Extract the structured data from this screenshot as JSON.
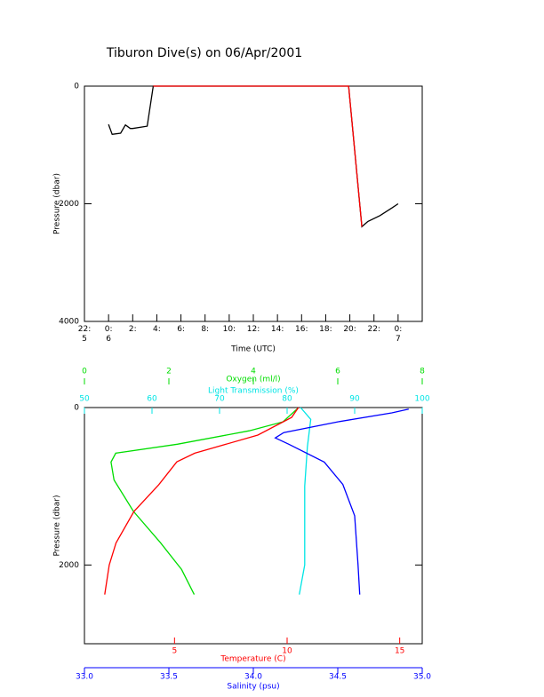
{
  "chart_data": [
    {
      "type": "line",
      "title": "Tiburon Dive(s) on 06/Apr/2001",
      "xlabel": "Time (UTC)",
      "ylabel": "Pressure (dbar)",
      "xlim": [
        -2,
        26
      ],
      "xticks": [
        {
          "value": -2,
          "label": "22:\n5"
        },
        {
          "value": 0,
          "label": "0:\n6"
        },
        {
          "value": 2,
          "label": "2:"
        },
        {
          "value": 4,
          "label": "4:"
        },
        {
          "value": 6,
          "label": "6:"
        },
        {
          "value": 8,
          "label": "8:"
        },
        {
          "value": 10,
          "label": "10:"
        },
        {
          "value": 12,
          "label": "12:"
        },
        {
          "value": 14,
          "label": "14:"
        },
        {
          "value": 16,
          "label": "16:"
        },
        {
          "value": 18,
          "label": "18:"
        },
        {
          "value": 20,
          "label": "20:"
        },
        {
          "value": 22,
          "label": "22:"
        },
        {
          "value": 24,
          "label": "0:\n7"
        }
      ],
      "ylim": [
        4000,
        0
      ],
      "yticks": [
        0,
        2000,
        4000
      ],
      "series": [
        {
          "color": "#000000",
          "x": [
            0.0,
            0.3,
            1.0,
            1.4,
            1.8,
            2.0,
            3.2,
            3.7,
            19.9,
            21.0,
            21.5,
            22.5,
            23.5,
            24.0
          ],
          "values": [
            650,
            820,
            800,
            660,
            720,
            720,
            680,
            0,
            0,
            2390,
            2300,
            2200,
            2070,
            2000
          ]
        },
        {
          "color": "#ff0000",
          "x": [
            3.7,
            19.9,
            21.0
          ],
          "values": [
            0,
            0,
            2390
          ]
        }
      ]
    },
    {
      "type": "profile",
      "ylabel": "Pressure (dbar)",
      "ylim": [
        3000,
        0
      ],
      "yticks": [
        0,
        2000
      ],
      "xaxes": [
        {
          "label": "Oxygen (ml/l)",
          "color": "#00dd00",
          "xlim": [
            0,
            8
          ],
          "xticks": [
            0,
            2,
            4,
            6,
            8
          ]
        },
        {
          "label": "Light Transmission (%)",
          "color": "#00e5e5",
          "xlim": [
            50,
            100
          ],
          "xticks": [
            50,
            60,
            70,
            80,
            90,
            100
          ]
        },
        {
          "label": "Temperature (C)",
          "color": "#ff0000",
          "xlim": [
            1,
            16
          ],
          "xticks": [
            5,
            10,
            15
          ]
        },
        {
          "label": "Salinity (psu)",
          "color": "#0000ff",
          "xlim": [
            33,
            35
          ],
          "xticks": [
            {
              "value": 33,
              "label": "33.0"
            },
            {
              "value": 33.5,
              "label": "33.5"
            },
            {
              "value": 34,
              "label": "34.0"
            },
            {
              "value": 34.5,
              "label": "34.5"
            },
            {
              "value": 35,
              "label": "35.0"
            }
          ]
        }
      ],
      "series": [
        {
          "color": "#00dd00",
          "xaxis": 0,
          "x": [
            5.05,
            4.7,
            3.9,
            2.2,
            0.74,
            0.63,
            0.7,
            1.16,
            1.8,
            2.3,
            2.6
          ],
          "values": [
            11,
            182,
            295,
            466,
            580,
            693,
            920,
            1318,
            1716,
            2057,
            2375
          ]
        },
        {
          "color": "#00e5e5",
          "xaxis": 1,
          "x": [
            82.0,
            83.5,
            83.0,
            82.6,
            82.6,
            81.8
          ],
          "values": [
            0,
            150,
            500,
            1000,
            2000,
            2375
          ]
        },
        {
          "color": "#ff0000",
          "xaxis": 2,
          "x": [
            10.5,
            10.2,
            8.7,
            5.9,
            5.1,
            4.3,
            3.2,
            2.4,
            2.1,
            1.9
          ],
          "values": [
            0,
            125,
            350,
            580,
            690,
            980,
            1320,
            1720,
            2000,
            2375
          ]
        },
        {
          "color": "#0000ff",
          "xaxis": 3,
          "x": [
            34.92,
            34.82,
            34.5,
            34.18,
            34.13,
            34.21,
            34.42,
            34.53,
            34.6,
            34.62,
            34.63
          ],
          "values": [
            20,
            68,
            182,
            318,
            386,
            466,
            693,
            977,
            1375,
            2000,
            2375
          ]
        }
      ]
    }
  ]
}
